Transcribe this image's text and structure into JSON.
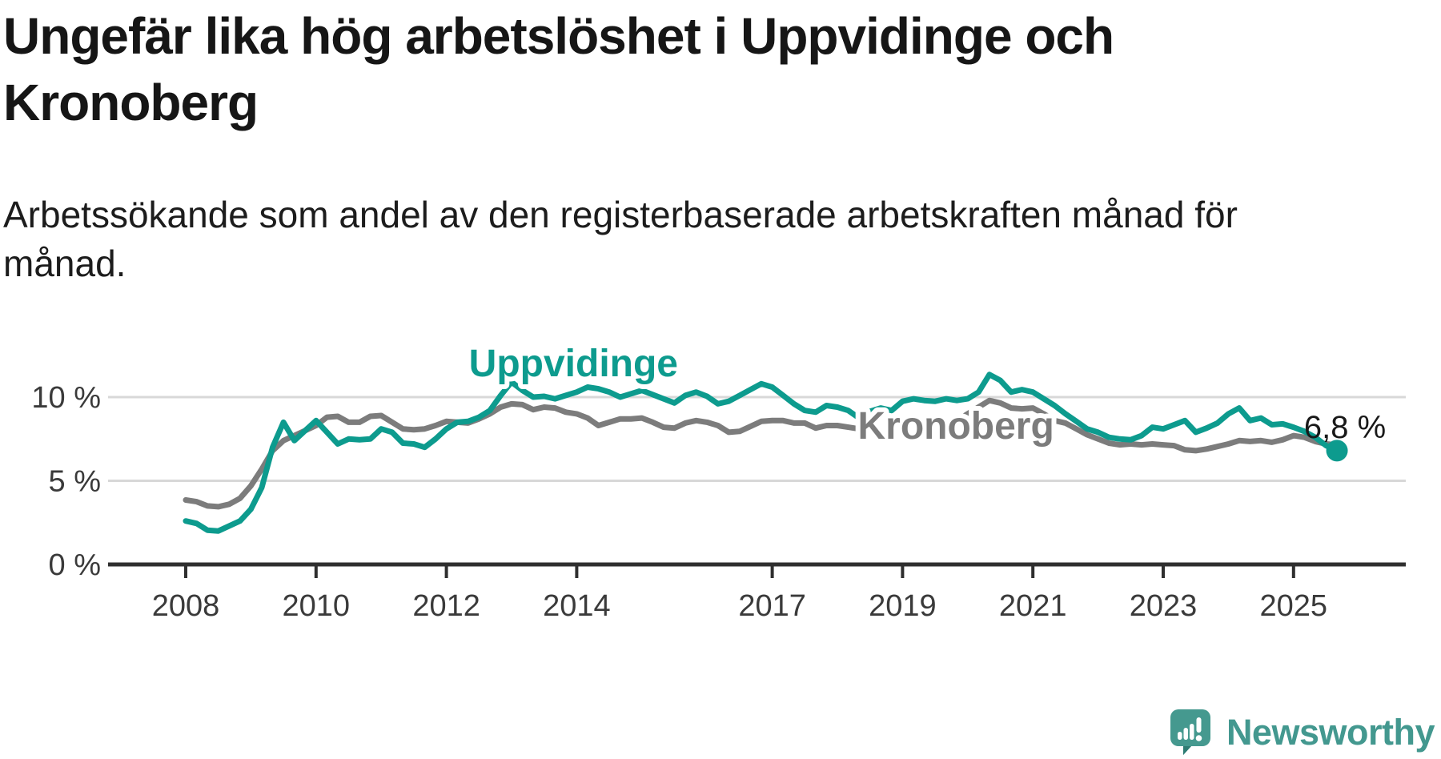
{
  "header": {
    "title_line1": "Ungefär lika hög arbetslöshet i Uppvidinge och",
    "title_line2": "Kronoberg",
    "subtitle_line1": "Arbetssökande som andel av den registerbaserade arbetskraften månad för",
    "subtitle_line2": "månad."
  },
  "footer": {
    "brand": "Newsworthy"
  },
  "colors": {
    "uppvidinge_teal": "#0d9b8e",
    "kronoberg_gray": "#7c7c7c",
    "gridline": "#d8d8d8",
    "axis": "#2f2f2f",
    "axis_label": "#3a3a3a",
    "text_dark": "#161616",
    "logo_teal": "#45998f",
    "logo_teal_dark": "#2e7c73"
  },
  "chart_data": {
    "type": "line",
    "title": "Ungefär lika hög arbetslöshet i Uppvidinge och Kronoberg",
    "subtitle": "Arbetssökande som andel av den registerbaserade arbetskraften månad för månad.",
    "xlabel": "",
    "ylabel": "",
    "x_unit": "year (bimonthly samples of monthly data)",
    "x_start": 2008.0,
    "x_step": 0.1666667,
    "ylim": [
      0,
      12
    ],
    "xlim": [
      2007.8,
      2026.7
    ],
    "grid": "horizontal gridlines at 5% and 10%, baseline at 0%",
    "legend": "inline series labels",
    "y_ticks": [
      {
        "value": 0,
        "label": "0 %"
      },
      {
        "value": 5,
        "label": "5 %"
      },
      {
        "value": 10,
        "label": "10 %"
      }
    ],
    "x_ticks": [
      {
        "value": 2008,
        "label": "2008"
      },
      {
        "value": 2010,
        "label": "2010"
      },
      {
        "value": 2012,
        "label": "2012"
      },
      {
        "value": 2014,
        "label": "2014"
      },
      {
        "value": 2017,
        "label": "2017"
      },
      {
        "value": 2019,
        "label": "2019"
      },
      {
        "value": 2021,
        "label": "2021"
      },
      {
        "value": 2023,
        "label": "2023"
      },
      {
        "value": 2025,
        "label": "2025"
      }
    ],
    "series": [
      {
        "name": "Kronoberg",
        "color": "#7c7c7c",
        "values": [
          3.85,
          3.75,
          3.5,
          3.45,
          3.6,
          3.95,
          4.7,
          5.7,
          6.8,
          7.4,
          7.7,
          8.0,
          8.3,
          8.8,
          8.85,
          8.5,
          8.5,
          8.85,
          8.9,
          8.5,
          8.1,
          8.05,
          8.1,
          8.3,
          8.55,
          8.5,
          8.45,
          8.7,
          9.0,
          9.4,
          9.6,
          9.55,
          9.25,
          9.4,
          9.35,
          9.1,
          9.0,
          8.75,
          8.3,
          8.5,
          8.7,
          8.7,
          8.75,
          8.5,
          8.2,
          8.15,
          8.45,
          8.6,
          8.5,
          8.3,
          7.9,
          7.95,
          8.25,
          8.55,
          8.6,
          8.6,
          8.45,
          8.45,
          8.15,
          8.3,
          8.3,
          8.2,
          8.1,
          7.95,
          7.9,
          7.85,
          8.0,
          8.05,
          8.15,
          8.2,
          8.3,
          8.6,
          9.0,
          9.4,
          9.8,
          9.65,
          9.35,
          9.3,
          9.35,
          9.0,
          8.6,
          8.45,
          8.1,
          7.75,
          7.5,
          7.25,
          7.15,
          7.2,
          7.15,
          7.2,
          7.15,
          7.1,
          6.85,
          6.8,
          6.9,
          7.05,
          7.2,
          7.4,
          7.35,
          7.4,
          7.3,
          7.45,
          7.7,
          7.6,
          7.35,
          7.2,
          7.15
        ]
      },
      {
        "name": "Uppvidinge",
        "color": "#0d9b8e",
        "values": [
          2.6,
          2.45,
          2.05,
          2.0,
          2.3,
          2.6,
          3.3,
          4.6,
          7.0,
          8.5,
          7.4,
          8.0,
          8.6,
          7.9,
          7.2,
          7.5,
          7.45,
          7.5,
          8.1,
          7.9,
          7.25,
          7.2,
          7.0,
          7.5,
          8.1,
          8.5,
          8.55,
          8.8,
          9.2,
          10.1,
          10.9,
          10.4,
          10.0,
          10.05,
          9.9,
          10.1,
          10.3,
          10.6,
          10.5,
          10.3,
          10.0,
          10.2,
          10.4,
          10.15,
          9.9,
          9.65,
          10.1,
          10.3,
          10.05,
          9.6,
          9.75,
          10.1,
          10.45,
          10.8,
          10.6,
          10.1,
          9.6,
          9.2,
          9.1,
          9.5,
          9.4,
          9.2,
          8.75,
          9.15,
          9.35,
          9.2,
          9.75,
          9.9,
          9.8,
          9.75,
          9.9,
          9.8,
          9.9,
          10.3,
          11.35,
          11.0,
          10.3,
          10.45,
          10.3,
          9.9,
          9.5,
          9.0,
          8.55,
          8.1,
          7.9,
          7.6,
          7.5,
          7.45,
          7.7,
          8.2,
          8.1,
          8.35,
          8.6,
          7.9,
          8.15,
          8.45,
          9.0,
          9.35,
          8.6,
          8.75,
          8.35,
          8.4,
          8.2,
          7.95,
          7.6,
          7.1,
          6.8
        ]
      }
    ],
    "series_labels": [
      {
        "text": "Uppvidinge",
        "x": 2013.95,
        "y": 11.24,
        "color": "#0d9b8e"
      },
      {
        "text": "Kronoberg",
        "x": 2019.82,
        "y": 7.51,
        "color": "#7c7c7c"
      }
    ],
    "end_annotation": {
      "series": "Uppvidinge",
      "label": "6,8 %",
      "value": 6.8
    }
  }
}
